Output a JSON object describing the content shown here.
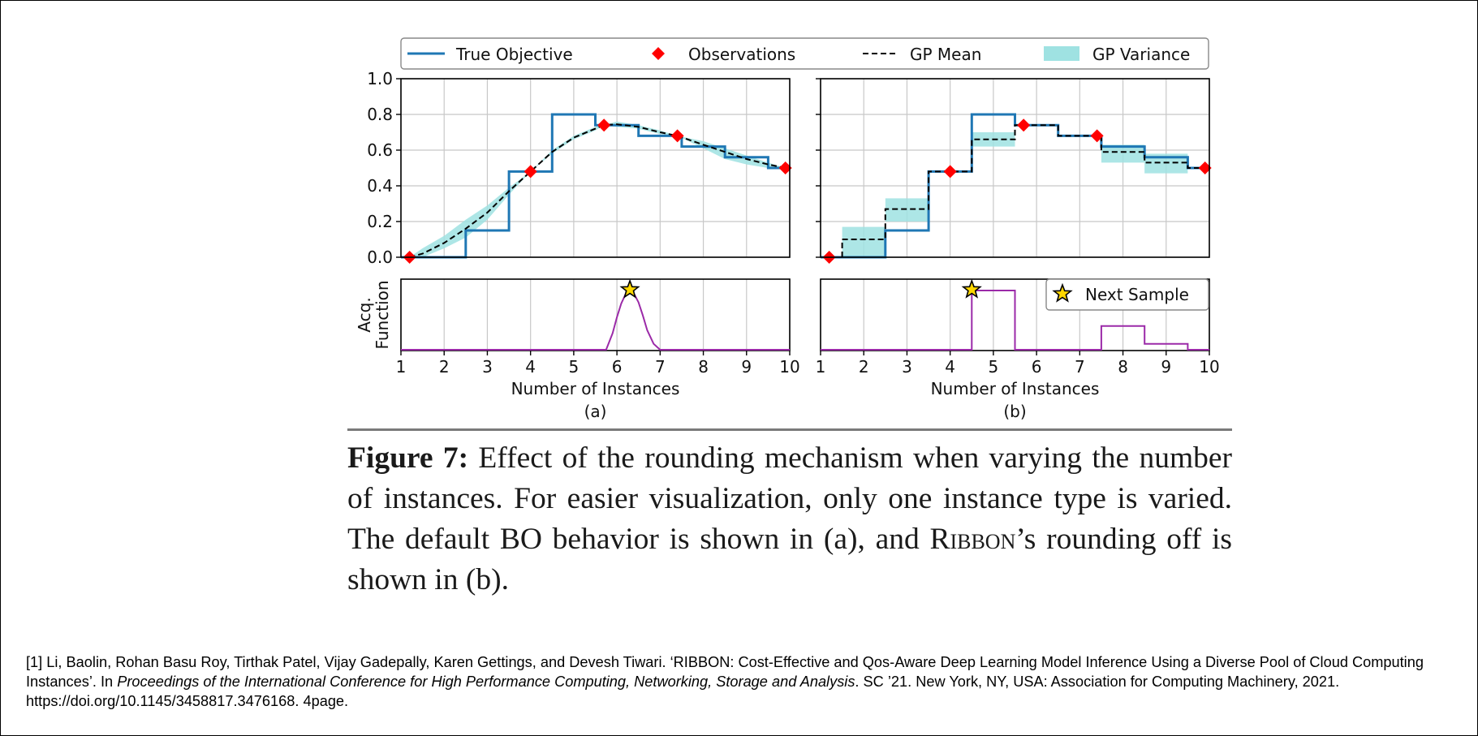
{
  "figure": {
    "legend": {
      "true_objective": "True Objective",
      "observations": "Observations",
      "gp_mean": "GP Mean",
      "gp_variance": "GP Variance",
      "next_sample": "Next Sample"
    },
    "colors": {
      "true_objective": "#1f77b4",
      "observations": "#ff0000",
      "gp_mean": "#000000",
      "gp_variance": "#9fe2e2",
      "acquisition": "#9b2aa8",
      "star": "#ffd700"
    }
  },
  "chart_data": [
    {
      "type": "line",
      "panel": "(a)",
      "title": "",
      "xlabel": "Number of Instances",
      "ylabel": "",
      "xlim": [
        1,
        10
      ],
      "ylim": [
        0,
        1.0
      ],
      "xticks": [
        "1",
        "2",
        "3",
        "4",
        "5",
        "6",
        "7",
        "8",
        "9",
        "10"
      ],
      "yticks": [
        "0.0",
        "0.2",
        "0.4",
        "0.6",
        "0.8",
        "1.0"
      ],
      "grid": true,
      "true_objective": {
        "x": [
          1.0,
          2.5,
          2.5,
          3.5,
          3.5,
          4.5,
          4.5,
          5.5,
          5.5,
          6.5,
          6.5,
          7.5,
          7.5,
          8.5,
          8.5,
          9.5,
          9.5,
          10.0
        ],
        "y": [
          0.0,
          0.0,
          0.15,
          0.15,
          0.48,
          0.48,
          0.8,
          0.8,
          0.74,
          0.74,
          0.68,
          0.68,
          0.62,
          0.62,
          0.56,
          0.56,
          0.5,
          0.5
        ]
      },
      "observations": {
        "x": [
          1.2,
          4.0,
          5.7,
          7.4,
          9.9
        ],
        "y": [
          0.0,
          0.48,
          0.74,
          0.68,
          0.5
        ]
      },
      "gp_mean": {
        "x": [
          1.2,
          1.5,
          2.0,
          2.5,
          3.0,
          3.5,
          4.0,
          4.5,
          5.0,
          5.5,
          5.7,
          6.0,
          6.5,
          7.0,
          7.4,
          8.0,
          8.5,
          9.0,
          9.5,
          9.9
        ],
        "y": [
          0.0,
          0.02,
          0.08,
          0.16,
          0.25,
          0.37,
          0.48,
          0.59,
          0.67,
          0.72,
          0.74,
          0.745,
          0.73,
          0.7,
          0.68,
          0.63,
          0.59,
          0.55,
          0.52,
          0.5
        ]
      },
      "gp_variance": {
        "x": [
          1.2,
          1.5,
          2.0,
          2.5,
          3.0,
          3.5,
          4.0,
          4.5,
          5.0,
          5.5,
          5.7,
          6.0,
          6.5,
          7.0,
          7.4,
          8.0,
          8.5,
          9.0,
          9.5,
          9.9
        ],
        "upper": [
          0.0,
          0.05,
          0.12,
          0.21,
          0.29,
          0.39,
          0.48,
          0.6,
          0.68,
          0.73,
          0.74,
          0.76,
          0.74,
          0.71,
          0.68,
          0.65,
          0.61,
          0.57,
          0.53,
          0.5
        ],
        "lower": [
          0.0,
          0.0,
          0.05,
          0.11,
          0.21,
          0.35,
          0.48,
          0.58,
          0.66,
          0.71,
          0.74,
          0.73,
          0.72,
          0.69,
          0.68,
          0.61,
          0.55,
          0.52,
          0.5,
          0.5
        ]
      },
      "acquisition": {
        "ylabel": "Acq.\nFunction",
        "x": [
          1.0,
          5.75,
          5.9,
          6.0,
          6.1,
          6.2,
          6.3,
          6.4,
          6.5,
          6.6,
          6.7,
          6.85,
          7.0,
          10.0
        ],
        "y": [
          0.0,
          0.0,
          0.28,
          0.55,
          0.78,
          0.94,
          1.0,
          0.94,
          0.8,
          0.58,
          0.33,
          0.1,
          0.0,
          0.0
        ]
      },
      "next_sample": {
        "x": 6.3,
        "y": 1.0
      }
    },
    {
      "type": "line",
      "panel": "(b)",
      "title": "",
      "xlabel": "Number of Instances",
      "ylabel": "",
      "xlim": [
        1,
        10
      ],
      "ylim": [
        0,
        1.0
      ],
      "xticks": [
        "1",
        "2",
        "3",
        "4",
        "5",
        "6",
        "7",
        "8",
        "9",
        "10"
      ],
      "yticks": [
        "0.0",
        "0.2",
        "0.4",
        "0.6",
        "0.8",
        "1.0"
      ],
      "grid": true,
      "true_objective": {
        "x": [
          1.0,
          2.5,
          2.5,
          3.5,
          3.5,
          4.5,
          4.5,
          5.5,
          5.5,
          6.5,
          6.5,
          7.5,
          7.5,
          8.5,
          8.5,
          9.5,
          9.5,
          10.0
        ],
        "y": [
          0.0,
          0.0,
          0.15,
          0.15,
          0.48,
          0.48,
          0.8,
          0.8,
          0.74,
          0.74,
          0.68,
          0.68,
          0.62,
          0.62,
          0.56,
          0.56,
          0.5,
          0.5
        ]
      },
      "observations": {
        "x": [
          1.2,
          4.0,
          5.7,
          7.4,
          9.9
        ],
        "y": [
          0.0,
          0.48,
          0.74,
          0.68,
          0.5
        ]
      },
      "gp_mean": {
        "x": [
          1.5,
          1.5,
          2.5,
          2.5,
          3.5,
          3.5,
          4.5,
          4.5,
          5.5,
          5.5,
          6.5,
          6.5,
          7.5,
          7.5,
          8.5,
          8.5,
          9.5,
          9.5,
          10.0
        ],
        "y": [
          0.0,
          0.1,
          0.1,
          0.27,
          0.27,
          0.48,
          0.48,
          0.66,
          0.66,
          0.74,
          0.74,
          0.68,
          0.68,
          0.59,
          0.59,
          0.53,
          0.53,
          0.5,
          0.5
        ]
      },
      "gp_variance": {
        "steps": [
          {
            "x0": 1.5,
            "x1": 2.5,
            "low": 0.0,
            "high": 0.17
          },
          {
            "x0": 2.5,
            "x1": 3.5,
            "low": 0.2,
            "high": 0.33
          },
          {
            "x0": 4.5,
            "x1": 5.5,
            "low": 0.62,
            "high": 0.7
          },
          {
            "x0": 7.5,
            "x1": 8.5,
            "low": 0.53,
            "high": 0.63
          },
          {
            "x0": 8.5,
            "x1": 9.5,
            "low": 0.47,
            "high": 0.58
          }
        ]
      },
      "acquisition": {
        "ylabel": "",
        "x": [
          1.0,
          4.5,
          4.5,
          5.5,
          5.5,
          7.5,
          7.5,
          8.5,
          8.5,
          9.5,
          9.5,
          10.0
        ],
        "y": [
          0.0,
          0.0,
          1.0,
          1.0,
          0.0,
          0.0,
          0.4,
          0.4,
          0.1,
          0.1,
          0.0,
          0.0
        ]
      },
      "next_sample": {
        "x": 4.5,
        "y": 1.0
      }
    }
  ],
  "panel_labels": [
    "(a)",
    "(b)"
  ],
  "caption": {
    "label": "Figure 7:",
    "text_before": " Effect of the rounding mechanism when varying the number of instances. For easier visualization, only one instance type is varied. The default BO behavior is shown in (a), and ",
    "smallcaps": "Ribbon",
    "text_after": "’s rounding off is shown in (b)."
  },
  "reference": {
    "before": "[1] Li, Baolin, Rohan Basu Roy, Tirthak Patel, Vijay Gadepally, Karen Gettings, and Devesh Tiwari. ‘RIBBON: Cost-Effective and Qos-Aware Deep Learning Model Inference Using a Diverse Pool of Cloud Computing Instances’. In ",
    "italic": "Proceedings of the International Conference for High Performance Computing, Networking, Storage and Analysis",
    "after": ". SC ’21. New York, NY, USA: Association for Computing Machinery, 2021. https://doi.org/10.1145/3458817.3476168. 4page."
  }
}
